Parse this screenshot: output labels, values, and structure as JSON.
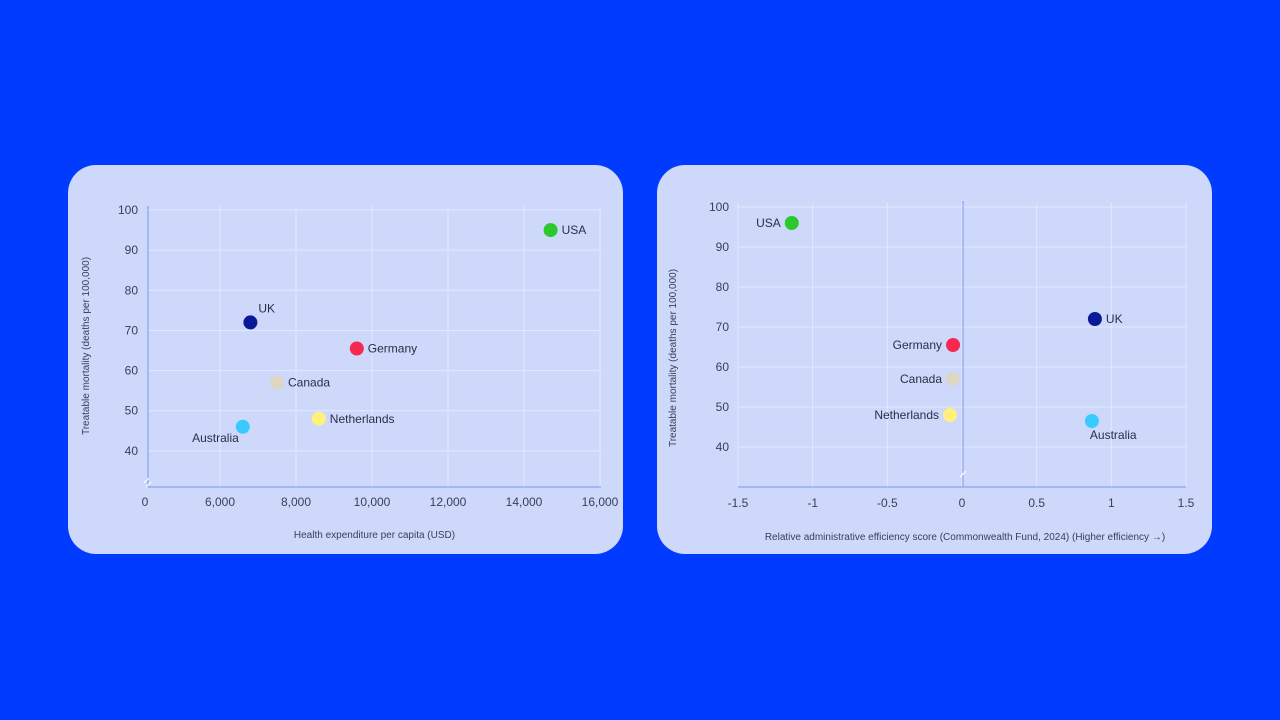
{
  "chart_data": [
    {
      "type": "scatter",
      "title": "",
      "xlabel": "Health expenditure per capita (USD)",
      "ylabel": "Treatable mortality (deaths per 100,000)",
      "xlim": [
        0,
        16000
      ],
      "ylim": [
        31,
        101
      ],
      "x_ticks": [
        "0",
        "6,000",
        "8,000",
        "10,000",
        "12,000",
        "14,000",
        "16,000"
      ],
      "x_tick_values": [
        0,
        6000,
        8000,
        10000,
        12000,
        14000,
        16000
      ],
      "y_ticks": [
        "40",
        "50",
        "60",
        "70",
        "80",
        "90",
        "100"
      ],
      "y_tick_values": [
        40,
        50,
        60,
        70,
        80,
        90,
        100
      ],
      "grid": true,
      "points": [
        {
          "label": "USA",
          "x": 14700,
          "y": 95,
          "color": "#2bc92b",
          "label_side": "right"
        },
        {
          "label": "UK",
          "x": 6800,
          "y": 72,
          "color": "#0a1a96",
          "label_side": "above-right"
        },
        {
          "label": "Germany",
          "x": 9600,
          "y": 65.5,
          "color": "#f5294f",
          "label_side": "right"
        },
        {
          "label": "Canada",
          "x": 7500,
          "y": 57,
          "color": "#dcd6c3",
          "label_side": "right"
        },
        {
          "label": "Netherlands",
          "x": 8600,
          "y": 48,
          "color": "#fff17a",
          "label_side": "right"
        },
        {
          "label": "Australia",
          "x": 6600,
          "y": 46,
          "color": "#39cbff",
          "label_side": "below-left"
        }
      ]
    },
    {
      "type": "scatter",
      "title": "",
      "xlabel": "Relative administrative efficiency score (Commonwealth Fund, 2024) (Higher efficiency →)",
      "ylabel": "Treatable mortality (deaths per 100,000)",
      "xlim": [
        -1.5,
        1.5
      ],
      "ylim": [
        30,
        101
      ],
      "x_ticks": [
        "-1.5",
        "-1",
        "-0.5",
        "0",
        "0.5",
        "1",
        "1.5"
      ],
      "x_tick_values": [
        -1.5,
        -1,
        -0.5,
        0,
        0.5,
        1,
        1.5
      ],
      "y_ticks": [
        "40",
        "50",
        "60",
        "70",
        "80",
        "90",
        "100"
      ],
      "y_tick_values": [
        40,
        50,
        60,
        70,
        80,
        90,
        100
      ],
      "grid": true,
      "points": [
        {
          "label": "USA",
          "x": -1.14,
          "y": 96,
          "color": "#2bc92b",
          "label_side": "left"
        },
        {
          "label": "UK",
          "x": 0.89,
          "y": 72,
          "color": "#0a1a96",
          "label_side": "right"
        },
        {
          "label": "Germany",
          "x": -0.06,
          "y": 65.5,
          "color": "#f5294f",
          "label_side": "left"
        },
        {
          "label": "Canada",
          "x": -0.06,
          "y": 57,
          "color": "#dcd6c3",
          "label_side": "left"
        },
        {
          "label": "Netherlands",
          "x": -0.08,
          "y": 48,
          "color": "#fff17a",
          "label_side": "left"
        },
        {
          "label": "Australia",
          "x": 0.87,
          "y": 46.5,
          "color": "#39cbff",
          "label_side": "below-right"
        }
      ]
    }
  ],
  "colors": {
    "background": "#003bff",
    "panel": "#cdd8fb",
    "grid": "#e3e9fd",
    "axis": "#7d95f0"
  }
}
